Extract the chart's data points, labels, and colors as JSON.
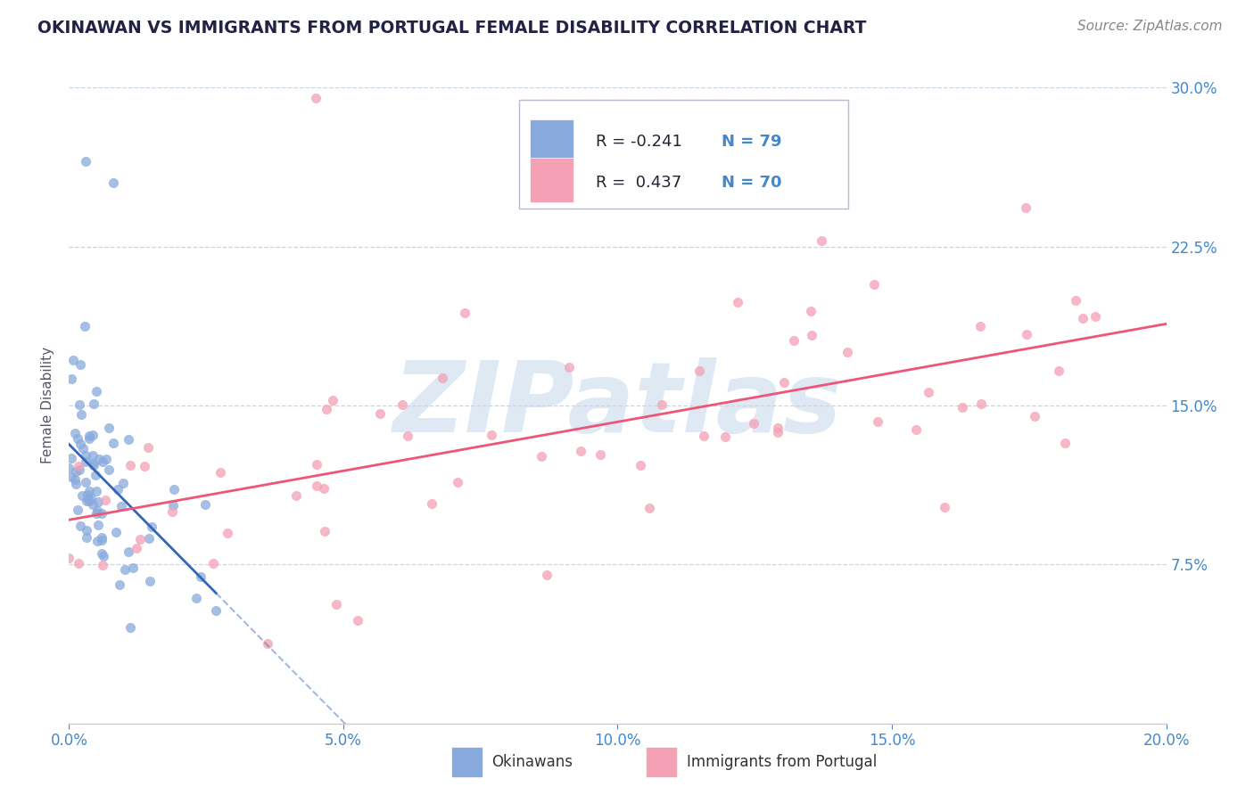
{
  "title": "OKINAWAN VS IMMIGRANTS FROM PORTUGAL FEMALE DISABILITY CORRELATION CHART",
  "source": "Source: ZipAtlas.com",
  "legend1_label": "Okinawans",
  "legend2_label": "Immigrants from Portugal",
  "R1": -0.241,
  "N1": 79,
  "R2": 0.437,
  "N2": 70,
  "blue_color": "#88aadd",
  "pink_color": "#f4a0b5",
  "blue_line_color": "#3366bb",
  "pink_line_color": "#ee5577",
  "watermark": "ZIPatlas",
  "watermark_color": "#c5d8ec",
  "title_color": "#222244",
  "axis_color": "#4488cc",
  "tick_color": "#4488cc",
  "grid_color": "#bbccdd",
  "background_color": "#ffffff",
  "xlim": [
    0.0,
    20.0
  ],
  "ylim": [
    0.0,
    30.0
  ],
  "seed1": 7,
  "seed2": 13
}
